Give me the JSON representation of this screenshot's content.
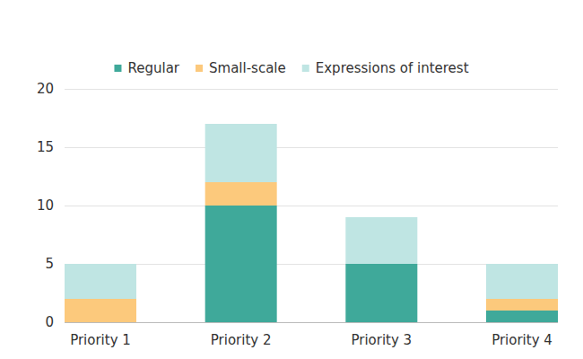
{
  "chart_data": {
    "type": "bar",
    "stacked": true,
    "grid": true,
    "legend": "top",
    "categories": [
      "Priority 1",
      "Priority 2",
      "Priority 3",
      "Priority 4"
    ],
    "series": [
      {
        "name": "Regular",
        "color": "#3fa99a",
        "values": [
          0,
          10,
          5,
          1
        ]
      },
      {
        "name": "Small-scale",
        "color": "#fcc97c",
        "values": [
          2,
          2,
          0,
          1
        ]
      },
      {
        "name": "Expressions of interest",
        "color": "#bfe5e3",
        "values": [
          3,
          5,
          4,
          3
        ]
      }
    ],
    "ylim": [
      0,
      20
    ],
    "yticks": [
      0,
      5,
      10,
      15,
      20
    ]
  }
}
